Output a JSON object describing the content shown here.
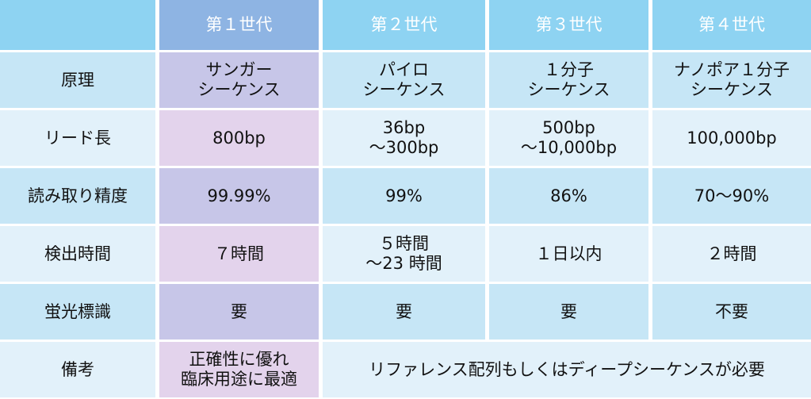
{
  "headers": [
    "",
    "第１世代",
    "第２世代",
    "第３世代",
    "第４世代"
  ],
  "rows": [
    {
      "label": "原理",
      "cells": [
        "サンガー\nシーケンス",
        "パイロ\nシーケンス",
        "１分子\nシーケンス",
        "ナノポア１分子\nシーケンス"
      ]
    },
    {
      "label": "リード長",
      "cells": [
        "800bp",
        "36bp\n～300bp",
        "500bp\n～10,000bp",
        "100,000bp"
      ]
    },
    {
      "label": "読み取り精度",
      "cells": [
        "99.99%",
        "99%",
        "86%",
        "70～90%"
      ]
    },
    {
      "label": "検出時間",
      "cells": [
        "７時間",
        "５時間\n～23 時間",
        "１日以内",
        "２時間"
      ]
    },
    {
      "label": "蛍光標識",
      "cells": [
        "要",
        "要",
        "要",
        "不要"
      ]
    },
    {
      "label": "備考",
      "cells": [
        "正確性に優れ\n臨床用途に最適",
        "リファレンス配列もしくはディープシーケンスが必要"
      ]
    }
  ]
}
